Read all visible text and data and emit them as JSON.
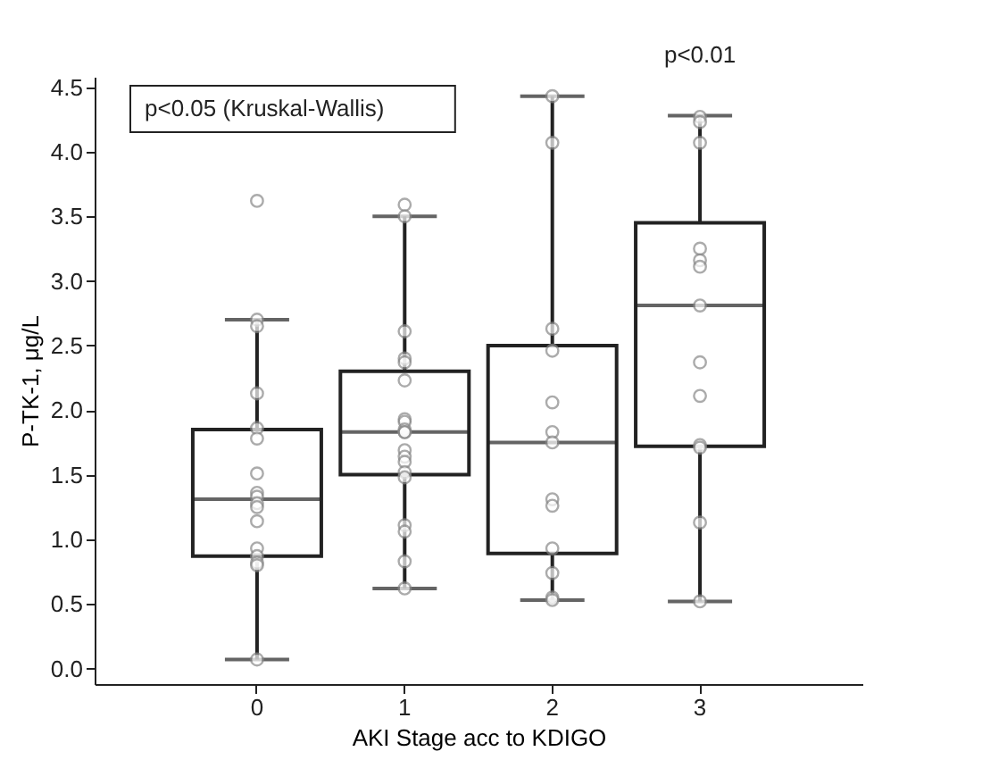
{
  "chart_data": {
    "type": "box",
    "xlabel": "AKI Stage acc to KDIGO",
    "ylabel": "P-TK-1, μg/L",
    "categories": [
      "0",
      "1",
      "2",
      "3"
    ],
    "boxes": [
      {
        "low": 0.07,
        "q1": 0.87,
        "median": 1.31,
        "q3": 1.85,
        "high": 2.7,
        "outliers": [
          3.62
        ]
      },
      {
        "low": 0.62,
        "q1": 1.5,
        "median": 1.83,
        "q3": 2.3,
        "high": 3.5
      },
      {
        "low": 0.53,
        "q1": 0.89,
        "median": 1.75,
        "q3": 2.5,
        "high": 4.43
      },
      {
        "low": 0.52,
        "q1": 1.72,
        "median": 2.81,
        "q3": 3.45,
        "high": 4.28
      }
    ],
    "series": [
      {
        "type": "scatter",
        "color": "#ffffff",
        "x": [
          "0",
          "0",
          "0",
          "0",
          "0",
          "0",
          "0",
          "0",
          "0",
          "0",
          "0",
          "0",
          "0",
          "0",
          "0",
          "0"
        ],
        "values": [
          2.7,
          2.65,
          2.13,
          1.86,
          1.78,
          1.51,
          1.36,
          1.33,
          1.28,
          1.25,
          1.14,
          0.93,
          0.87,
          0.82,
          0.8,
          0.07
        ]
      },
      {
        "type": "scatter",
        "color": "#ffffff",
        "x": [
          "1",
          "1",
          "1",
          "1",
          "1",
          "1",
          "1",
          "1",
          "1",
          "1",
          "1",
          "1",
          "1",
          "1",
          "1",
          "1",
          "1",
          "1",
          "1",
          "1"
        ],
        "values": [
          3.59,
          3.5,
          2.61,
          2.4,
          2.37,
          2.23,
          1.93,
          1.91,
          1.85,
          1.83,
          1.83,
          1.69,
          1.64,
          1.6,
          1.52,
          1.48,
          1.11,
          1.06,
          0.83,
          0.62
        ]
      },
      {
        "type": "scatter",
        "color": "#ffffff",
        "x": [
          "2",
          "2",
          "2",
          "2",
          "2",
          "2",
          "2",
          "2",
          "2",
          "2",
          "2",
          "2",
          "2"
        ],
        "values": [
          4.43,
          4.07,
          2.63,
          2.46,
          2.06,
          1.83,
          1.75,
          1.31,
          1.26,
          0.93,
          0.74,
          0.55,
          0.53
        ]
      },
      {
        "type": "scatter",
        "color": "#ffffff",
        "x": [
          "3",
          "3",
          "3",
          "3",
          "3",
          "3",
          "3",
          "3",
          "3",
          "3",
          "3",
          "3",
          "3"
        ],
        "values": [
          4.27,
          4.23,
          4.07,
          3.25,
          3.16,
          3.11,
          2.81,
          2.37,
          2.11,
          1.73,
          1.71,
          1.13,
          0.52
        ]
      }
    ],
    "ylim": [
      -0.12,
      4.58
    ],
    "yticks": [
      {
        "value": 0,
        "label": "0.0"
      },
      0.5,
      {
        "value": 1,
        "label": "1.0"
      },
      1.5,
      {
        "value": 2,
        "label": "2.0"
      },
      2.5,
      {
        "value": 3,
        "label": "3.0"
      },
      3.5,
      {
        "value": 4,
        "label": "4.0"
      },
      4.5
    ],
    "annotations": [
      "p<0.05 (Kruskal-Wallis)",
      "p<0.01"
    ],
    "marker": "circle",
    "grid": false
  }
}
